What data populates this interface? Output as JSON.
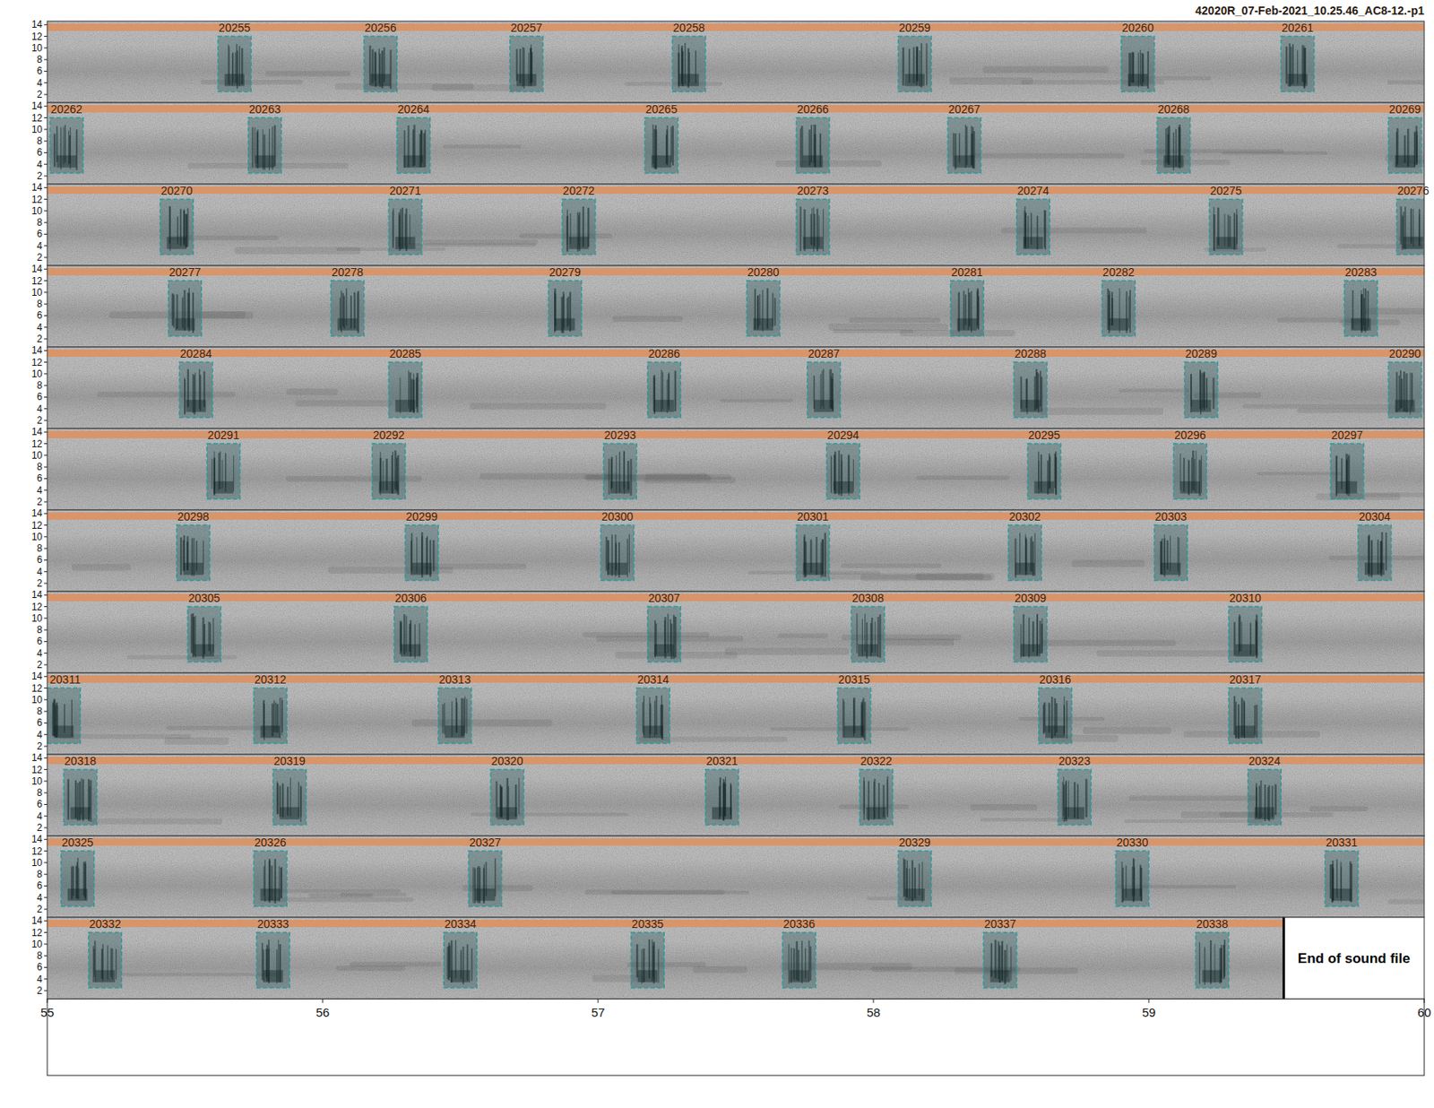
{
  "chart_data": {
    "type": "spectrogram",
    "title": "42020R_07-Feb-2021_10.25.46_AC8-12.-p1",
    "xlim": [
      55,
      60
    ],
    "xticks": [
      55,
      56,
      57,
      58,
      59,
      60
    ],
    "ylim": [
      0.6,
      14.6
    ],
    "yticks": [
      2,
      4,
      6,
      8,
      10,
      12,
      14
    ],
    "selection_duration": 0.12,
    "selection_low_freq": 2.5,
    "selection_high_freq": 12,
    "rows": [
      {
        "selections": [
          {
            "id": 20255,
            "start": 55.62
          },
          {
            "id": 20256,
            "start": 56.15
          },
          {
            "id": 20257,
            "start": 56.68
          },
          {
            "id": 20258,
            "start": 57.27
          },
          {
            "id": 20259,
            "start": 58.09
          },
          {
            "id": 20260,
            "start": 58.9
          },
          {
            "id": 20261,
            "start": 59.48
          }
        ]
      },
      {
        "selections": [
          {
            "id": 20262,
            "start": 55.01
          },
          {
            "id": 20263,
            "start": 55.73
          },
          {
            "id": 20264,
            "start": 56.27
          },
          {
            "id": 20265,
            "start": 57.17
          },
          {
            "id": 20266,
            "start": 57.72
          },
          {
            "id": 20267,
            "start": 58.27
          },
          {
            "id": 20268,
            "start": 59.03
          },
          {
            "id": 20269,
            "start": 59.87
          }
        ]
      },
      {
        "selections": [
          {
            "id": 20270,
            "start": 55.41
          },
          {
            "id": 20271,
            "start": 56.24
          },
          {
            "id": 20272,
            "start": 56.87
          },
          {
            "id": 20273,
            "start": 57.72
          },
          {
            "id": 20274,
            "start": 58.52
          },
          {
            "id": 20275,
            "start": 59.22
          },
          {
            "id": 20276,
            "start": 59.9
          }
        ]
      },
      {
        "selections": [
          {
            "id": 20277,
            "start": 55.44
          },
          {
            "id": 20278,
            "start": 56.03
          },
          {
            "id": 20279,
            "start": 56.82
          },
          {
            "id": 20280,
            "start": 57.54
          },
          {
            "id": 20281,
            "start": 58.28
          },
          {
            "id": 20282,
            "start": 58.83
          },
          {
            "id": 20283,
            "start": 59.71
          }
        ]
      },
      {
        "selections": [
          {
            "id": 20284,
            "start": 55.48
          },
          {
            "id": 20285,
            "start": 56.24
          },
          {
            "id": 20286,
            "start": 57.18
          },
          {
            "id": 20287,
            "start": 57.76
          },
          {
            "id": 20288,
            "start": 58.51
          },
          {
            "id": 20289,
            "start": 59.13
          },
          {
            "id": 20290,
            "start": 59.87
          }
        ]
      },
      {
        "selections": [
          {
            "id": 20291,
            "start": 55.58
          },
          {
            "id": 20292,
            "start": 56.18
          },
          {
            "id": 20293,
            "start": 57.02
          },
          {
            "id": 20294,
            "start": 57.83
          },
          {
            "id": 20295,
            "start": 58.56
          },
          {
            "id": 20296,
            "start": 59.09
          },
          {
            "id": 20297,
            "start": 59.66
          }
        ]
      },
      {
        "selections": [
          {
            "id": 20298,
            "start": 55.47
          },
          {
            "id": 20299,
            "start": 56.3
          },
          {
            "id": 20300,
            "start": 57.01
          },
          {
            "id": 20301,
            "start": 57.72
          },
          {
            "id": 20302,
            "start": 58.49
          },
          {
            "id": 20303,
            "start": 59.02
          },
          {
            "id": 20304,
            "start": 59.76
          }
        ]
      },
      {
        "selections": [
          {
            "id": 20305,
            "start": 55.51
          },
          {
            "id": 20306,
            "start": 56.26
          },
          {
            "id": 20307,
            "start": 57.18
          },
          {
            "id": 20308,
            "start": 57.92
          },
          {
            "id": 20309,
            "start": 58.51
          },
          {
            "id": 20310,
            "start": 59.29
          }
        ]
      },
      {
        "selections": [
          {
            "id": 20311,
            "start": 55.0
          },
          {
            "id": 20312,
            "start": 55.75
          },
          {
            "id": 20313,
            "start": 56.42
          },
          {
            "id": 20314,
            "start": 57.14
          },
          {
            "id": 20315,
            "start": 57.87
          },
          {
            "id": 20316,
            "start": 58.6
          },
          {
            "id": 20317,
            "start": 59.29
          }
        ]
      },
      {
        "selections": [
          {
            "id": 20318,
            "start": 55.06
          },
          {
            "id": 20319,
            "start": 55.82
          },
          {
            "id": 20320,
            "start": 56.61
          },
          {
            "id": 20321,
            "start": 57.39
          },
          {
            "id": 20322,
            "start": 57.95
          },
          {
            "id": 20323,
            "start": 58.67
          },
          {
            "id": 20324,
            "start": 59.36
          }
        ]
      },
      {
        "selections": [
          {
            "id": 20325,
            "start": 55.05
          },
          {
            "id": 20326,
            "start": 55.75
          },
          {
            "id": 20327,
            "start": 56.53
          },
          {
            "id": 20329,
            "start": 58.09
          },
          {
            "id": 20330,
            "start": 58.88
          },
          {
            "id": 20331,
            "start": 59.64
          }
        ]
      },
      {
        "selections": [
          {
            "id": 20332,
            "start": 55.15
          },
          {
            "id": 20333,
            "start": 55.76
          },
          {
            "id": 20334,
            "start": 56.44
          },
          {
            "id": 20335,
            "start": 57.12
          },
          {
            "id": 20336,
            "start": 57.67
          },
          {
            "id": 20337,
            "start": 58.4
          },
          {
            "id": 20338,
            "start": 59.17
          }
        ]
      }
    ],
    "end_of_file": {
      "label": "End of sound file",
      "time": 59.49
    }
  }
}
